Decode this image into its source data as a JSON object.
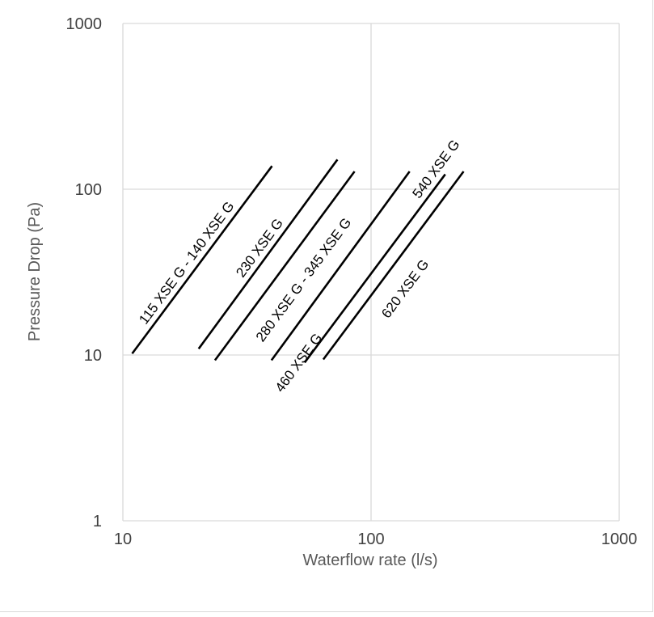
{
  "chart_data": {
    "type": "line",
    "xlabel": "Waterflow rate (l/s)",
    "ylabel": "Pressure Drop (Pa)",
    "xscale": "log",
    "yscale": "log",
    "xlim": [
      10,
      1000
    ],
    "ylim": [
      1,
      1000
    ],
    "x_ticks": [
      "10",
      "100",
      "1000"
    ],
    "y_ticks": [
      "1",
      "10",
      "100",
      "1000"
    ],
    "grid": true,
    "legend": "none",
    "series": [
      {
        "name": "115 XSE G - 140 XSE G",
        "x": [
          10.9,
          39.9
        ],
        "y": [
          10.2,
          138
        ]
      },
      {
        "name": "230 XSE G",
        "x": [
          20.2,
          73.2
        ],
        "y": [
          10.9,
          151
        ]
      },
      {
        "name": "280 XSE G - 345 XSE G",
        "x": [
          23.5,
          85.8
        ],
        "y": [
          9.3,
          128
        ]
      },
      {
        "name": "460 XSE G",
        "x": [
          39.7,
          143
        ],
        "y": [
          9.3,
          128
        ]
      },
      {
        "name": "540 XSE G",
        "x": [
          54.0,
          199
        ],
        "y": [
          9.0,
          123
        ]
      },
      {
        "name": "620 XSE G",
        "x": [
          64.2,
          236
        ],
        "y": [
          9.4,
          128
        ]
      }
    ],
    "colors": {
      "line": "#000000",
      "grid": "#d9d9d9",
      "tick_text": "#404040",
      "axis_title": "#595959"
    }
  }
}
